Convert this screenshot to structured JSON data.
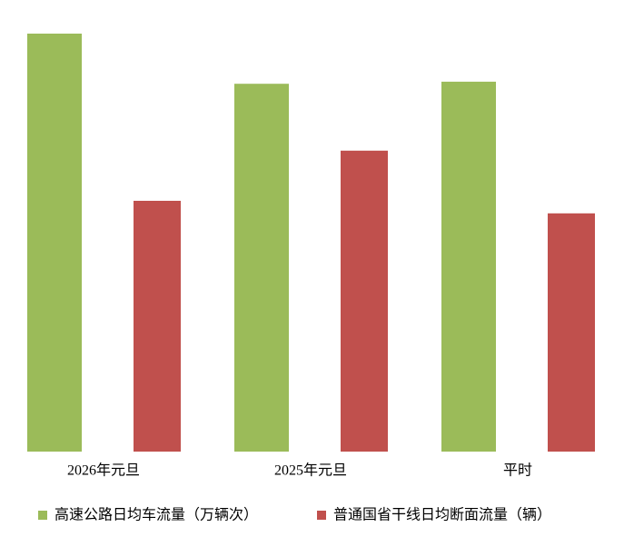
{
  "chart_data": {
    "type": "bar",
    "categories": [
      "2026年元旦",
      "2025年元旦",
      "平时"
    ],
    "series": [
      {
        "name": "高速公路日均车流量（万辆次）",
        "color": "#9bbb59",
        "values": [
          100,
          88,
          88.5
        ]
      },
      {
        "name": "普通国省干线日均断面流量（辆）",
        "color": "#c0504d",
        "values": [
          60,
          72,
          57
        ]
      }
    ],
    "ylim": [
      0,
      100
    ],
    "grid": false
  }
}
